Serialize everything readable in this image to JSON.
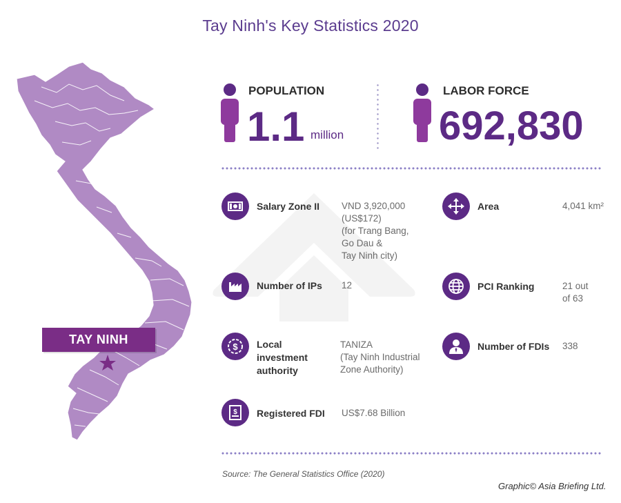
{
  "title": "Tay Ninh's Key Statistics 2020",
  "colors": {
    "accent": "#5c2a85",
    "map_fill": "#b08ac4",
    "label_bg": "#7a2d86",
    "star": "#7a2d86",
    "title": "#5b3c8f"
  },
  "map": {
    "highlight_label": "TAY NINH"
  },
  "population": {
    "label": "POPULATION",
    "value": "1.1",
    "unit": "million"
  },
  "labor_force": {
    "label": "LABOR FORCE",
    "value": "692,830"
  },
  "stats_left": [
    {
      "icon": "money-icon",
      "label": "Salary Zone II",
      "value": "VND 3,920,000\n(US$172)\n(for Trang Bang,\nGo Dau &\nTay Ninh city)"
    },
    {
      "icon": "factory-icon",
      "label": "Number of IPs",
      "value": "12"
    },
    {
      "icon": "coin-badge-icon",
      "label": "Local\ninvestment\nauthority",
      "value": "TANIZA\n(Tay Ninh Industrial\nZone Authority)"
    },
    {
      "icon": "document-dollar-icon",
      "label": "Registered FDI",
      "value": "US$7.68 Billion"
    }
  ],
  "stats_right": [
    {
      "icon": "move-arrows-icon",
      "label": "Area",
      "value": "4,041 km²"
    },
    {
      "icon": "globe-icon",
      "label": "PCI Ranking",
      "value": "21 out\nof 63"
    },
    {
      "icon": "businessman-icon",
      "label": "Number of FDIs",
      "value": "338"
    }
  ],
  "source": "Source: The General Statistics Office (2020)",
  "credit": "Graphic© Asia Briefing Ltd."
}
